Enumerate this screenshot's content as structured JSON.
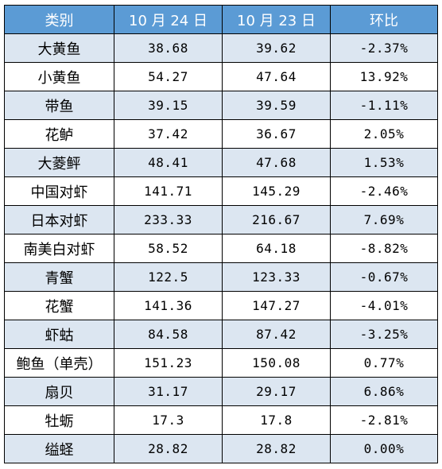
{
  "table": {
    "header": {
      "category": "类别",
      "date1": "10 月 24 日",
      "date2": "10 月 23 日",
      "change": "环比"
    },
    "rows": [
      {
        "name": "大黄鱼",
        "v1": "38.68",
        "v2": "39.62",
        "chg": "-2.37%"
      },
      {
        "name": "小黄鱼",
        "v1": "54.27",
        "v2": "47.64",
        "chg": "13.92%"
      },
      {
        "name": "带鱼",
        "v1": "39.15",
        "v2": "39.59",
        "chg": "-1.11%"
      },
      {
        "name": "花鲈",
        "v1": "37.42",
        "v2": "36.67",
        "chg": "2.05%"
      },
      {
        "name": "大菱鲆",
        "v1": "48.41",
        "v2": "47.68",
        "chg": "1.53%"
      },
      {
        "name": "中国对虾",
        "v1": "141.71",
        "v2": "145.29",
        "chg": "-2.46%"
      },
      {
        "name": "日本对虾",
        "v1": "233.33",
        "v2": "216.67",
        "chg": "7.69%"
      },
      {
        "name": "南美白对虾",
        "v1": "58.52",
        "v2": "64.18",
        "chg": "-8.82%"
      },
      {
        "name": "青蟹",
        "v1": "122.5",
        "v2": "123.33",
        "chg": "-0.67%"
      },
      {
        "name": "花蟹",
        "v1": "141.36",
        "v2": "147.27",
        "chg": "-4.01%"
      },
      {
        "name": "虾蛄",
        "v1": "84.58",
        "v2": "87.42",
        "chg": "-3.25%"
      },
      {
        "name": "鲍鱼（单壳）",
        "v1": "151.23",
        "v2": "150.08",
        "chg": "0.77%"
      },
      {
        "name": "扇贝",
        "v1": "31.17",
        "v2": "29.17",
        "chg": "6.86%"
      },
      {
        "name": "牡蛎",
        "v1": "17.3",
        "v2": "17.8",
        "chg": "-2.81%"
      },
      {
        "name": "缢蛏",
        "v1": "28.82",
        "v2": "28.82",
        "chg": "0.00%"
      }
    ]
  },
  "colors": {
    "header_bg": "#5b9bd5",
    "stripe_bg": "#dce6f1",
    "border": "#000000"
  }
}
